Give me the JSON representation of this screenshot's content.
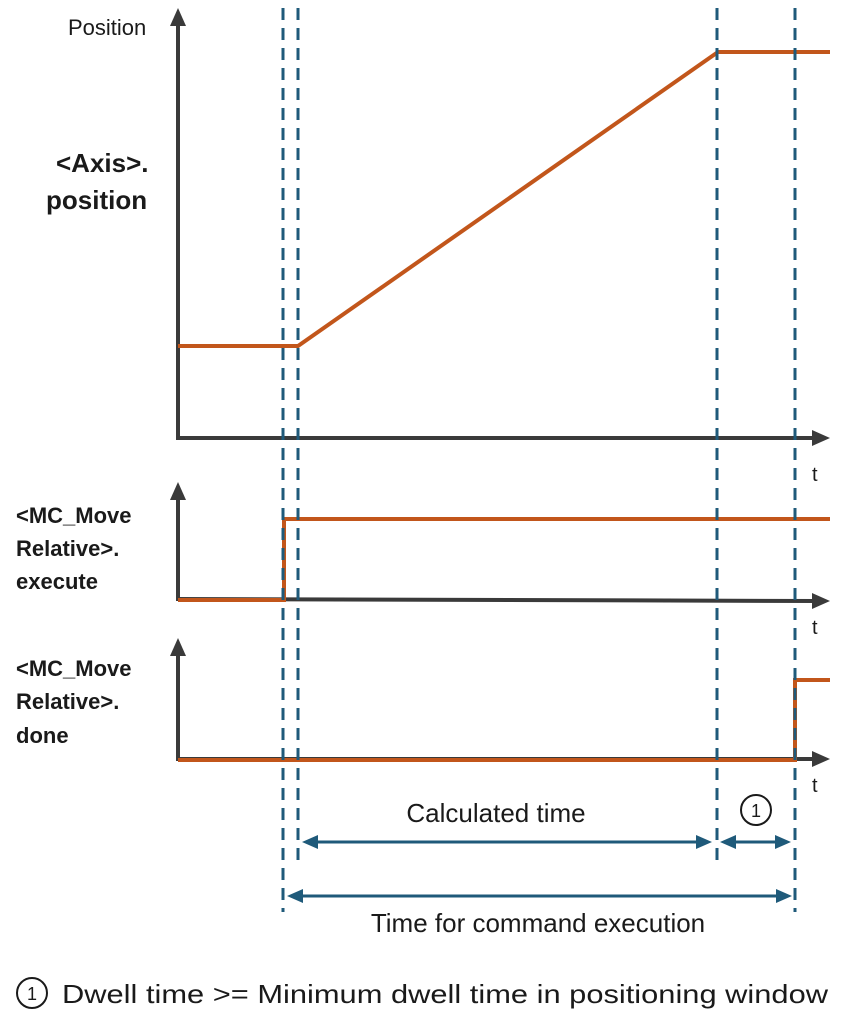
{
  "colors": {
    "signal": "#c2561b",
    "axis": "#3a3a3a",
    "marker": "#1f5a7a",
    "text": "#1a1a1a"
  },
  "panel_position": {
    "axis_title": "Position",
    "signal_label_line1": "<Axis>.",
    "signal_label_line2": "position",
    "time_label": "t"
  },
  "panel_execute": {
    "signal_label_line1": "<MC_Move",
    "signal_label_line2": "Relative>.",
    "signal_label_line3": "execute",
    "time_label": "t"
  },
  "panel_done": {
    "signal_label_line1": "<MC_Move",
    "signal_label_line2": "Relative>.",
    "signal_label_line3": "done",
    "time_label": "t"
  },
  "dimensions": {
    "calculated_time": "Calculated time",
    "dwell_marker": "1",
    "command_time": "Time for command execution"
  },
  "footnote": {
    "marker": "1",
    "text": "Dwell time >= Minimum dwell time in positioning window"
  }
}
